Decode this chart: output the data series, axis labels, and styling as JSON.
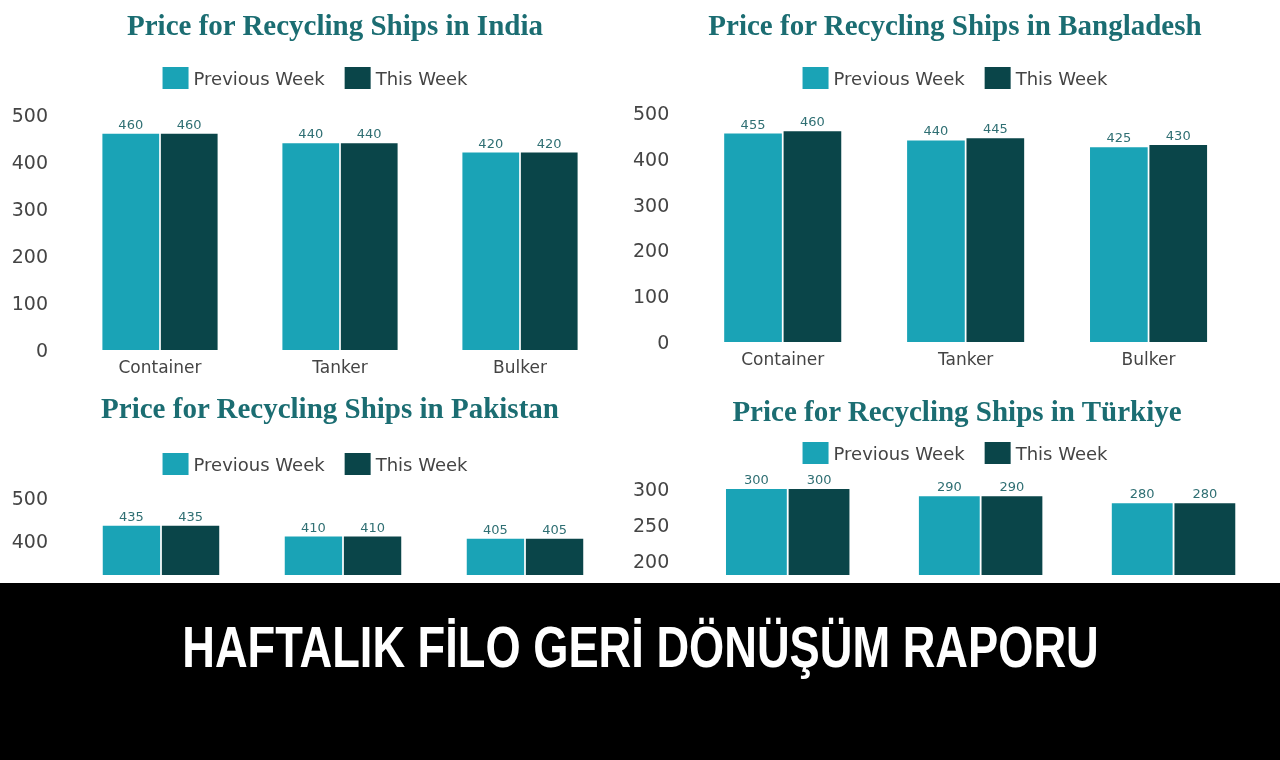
{
  "chart_data": [
    {
      "type": "bar",
      "title": "Price for Recycling Ships in India",
      "categories": [
        "Container",
        "Tanker",
        "Bulker"
      ],
      "series": [
        {
          "name": "Previous Week",
          "color": "#1aa3b6",
          "values": [
            460,
            440,
            420
          ]
        },
        {
          "name": "This Week",
          "color": "#0a4549",
          "values": [
            460,
            440,
            420
          ]
        }
      ],
      "ylim": [
        0,
        500
      ],
      "yticks": [
        0,
        100,
        200,
        300,
        400,
        500
      ],
      "grid": false,
      "legend": "top",
      "data_labels": true
    },
    {
      "type": "bar",
      "title": "Price for Recycling Ships in Bangladesh",
      "categories": [
        "Container",
        "Tanker",
        "Bulker"
      ],
      "series": [
        {
          "name": "Previous Week",
          "color": "#1aa3b6",
          "values": [
            455,
            440,
            425
          ]
        },
        {
          "name": "This Week",
          "color": "#0a4549",
          "values": [
            460,
            445,
            430
          ]
        }
      ],
      "ylim": [
        0,
        500
      ],
      "yticks": [
        0,
        100,
        200,
        300,
        400,
        500
      ],
      "grid": false,
      "legend": "top",
      "data_labels": true
    },
    {
      "type": "bar",
      "title": "Price for Recycling Ships in Pakistan",
      "categories": [
        null,
        null,
        null
      ],
      "series": [
        {
          "name": "Previous Week",
          "color": "#1aa3b6",
          "values": [
            435,
            410,
            405
          ]
        },
        {
          "name": "This Week",
          "color": "#0a4549",
          "values": [
            435,
            410,
            405
          ]
        }
      ],
      "ylim": [
        320,
        500
      ],
      "yticks": [
        400,
        500
      ],
      "grid": false,
      "legend": "top",
      "data_labels": true
    },
    {
      "type": "bar",
      "title": "Price for Recycling Ships in Türkiye",
      "categories": [
        null,
        null,
        null
      ],
      "series": [
        {
          "name": "Previous Week",
          "color": "#1aa3b6",
          "values": [
            300,
            290,
            280
          ]
        },
        {
          "name": "This Week",
          "color": "#0a4549",
          "values": [
            300,
            290,
            280
          ]
        }
      ],
      "ylim": [
        180,
        300
      ],
      "yticks": [
        200,
        250,
        300
      ],
      "grid": false,
      "legend": "top",
      "data_labels": true
    },
    {
      "type": "other",
      "annotations": [
        "HAFTALIK FİLO GERİ DÖNÜŞÜM RAPORU"
      ]
    }
  ]
}
